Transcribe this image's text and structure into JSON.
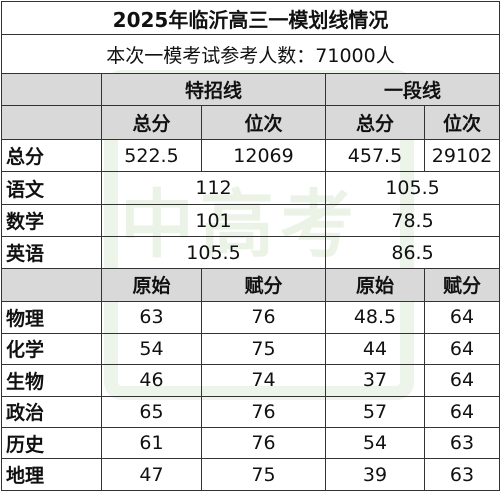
{
  "title": "2025年临沂高三一模划线情况",
  "subtitle": "本次一模考试参考人数：71000人",
  "watermark": {
    "text": "中高考",
    "color": "#6aa84f"
  },
  "groups": [
    "特招线",
    "一段线"
  ],
  "subheaders_top": [
    "总分",
    "位次",
    "总分",
    "位次"
  ],
  "subheaders_bottom": [
    "原始",
    "赋分",
    "原始",
    "赋分"
  ],
  "total_row": {
    "label": "总分",
    "values": [
      "522.5",
      "12069",
      "457.5",
      "29102"
    ]
  },
  "main_subjects": [
    {
      "label": "语文",
      "tezhao": "112",
      "yiduan": "105.5"
    },
    {
      "label": "数学",
      "tezhao": "101",
      "yiduan": "78.5"
    },
    {
      "label": "英语",
      "tezhao": "105.5",
      "yiduan": "86.5"
    }
  ],
  "elective_subjects": [
    {
      "label": "物理",
      "values": [
        "63",
        "76",
        "48.5",
        "64"
      ]
    },
    {
      "label": "化学",
      "values": [
        "54",
        "75",
        "44",
        "64"
      ]
    },
    {
      "label": "生物",
      "values": [
        "46",
        "74",
        "37",
        "64"
      ]
    },
    {
      "label": "政治",
      "values": [
        "65",
        "76",
        "57",
        "64"
      ]
    },
    {
      "label": "历史",
      "values": [
        "61",
        "76",
        "54",
        "63"
      ]
    },
    {
      "label": "地理",
      "values": [
        "47",
        "75",
        "39",
        "63"
      ]
    }
  ],
  "colors": {
    "header_bg": "#d9d9d9",
    "border": "#333333"
  }
}
